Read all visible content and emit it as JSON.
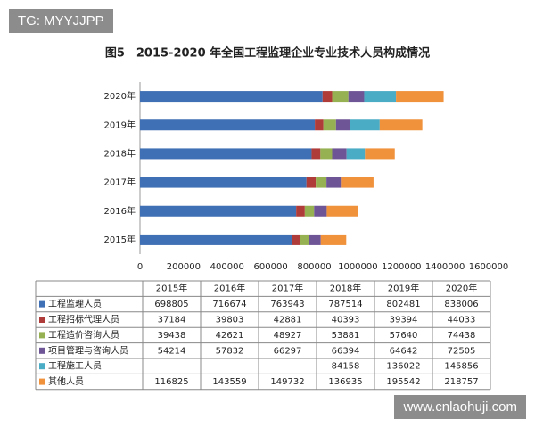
{
  "watermarks": [
    "TG: MYYJJPP",
    "www.cnlaohuji.com"
  ],
  "chart_data": {
    "type": "stacked-bar-horizontal",
    "title": "图5　2015-2020 年全国工程监理企业专业技术人员构成情况",
    "categories": [
      "2015年",
      "2016年",
      "2017年",
      "2018年",
      "2019年",
      "2020年"
    ],
    "series": [
      {
        "name": "工程监理人员",
        "color": "#3f6fb4",
        "values": [
          698805,
          716674,
          763943,
          787514,
          802481,
          838006
        ]
      },
      {
        "name": "工程招标代理人员",
        "color": "#b03c39",
        "values": [
          37184,
          39803,
          42881,
          40393,
          39394,
          44033
        ]
      },
      {
        "name": "工程造价咨询人员",
        "color": "#95b152",
        "values": [
          39438,
          42621,
          48927,
          53881,
          57640,
          74438
        ]
      },
      {
        "name": "项目管理与咨询人员",
        "color": "#6e5595",
        "values": [
          54214,
          57832,
          66297,
          66394,
          64642,
          72505
        ]
      },
      {
        "name": "工程施工人员",
        "color": "#4bacc6",
        "values": [
          null,
          null,
          null,
          84158,
          136022,
          145856
        ]
      },
      {
        "name": "其他人员",
        "color": "#f0913b",
        "values": [
          116825,
          143559,
          149732,
          136935,
          195542,
          218757
        ]
      }
    ],
    "xlim": [
      0,
      1600000
    ],
    "xticks": [
      0,
      200000,
      400000,
      600000,
      800000,
      1000000,
      1200000,
      1400000,
      1600000
    ],
    "grid": false
  }
}
